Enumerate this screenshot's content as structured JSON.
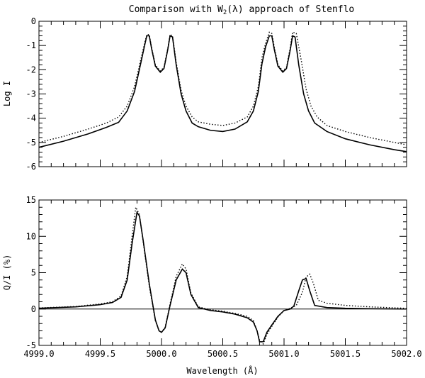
{
  "chart_data": [
    {
      "type": "line",
      "title": "Comparison with W2(λ) approach of Stenflo",
      "xlabel": "",
      "ylabel": "Log I",
      "xlim": [
        4999.0,
        5002.0
      ],
      "ylim": [
        -6,
        0
      ],
      "x_ticks": [
        4999.0,
        4999.5,
        5000.0,
        5000.5,
        5001.0,
        5001.5,
        5002.0
      ],
      "y_ticks": [
        0,
        -1,
        -2,
        -3,
        -4,
        -5,
        -6
      ],
      "y_tick_labels": [
        "0",
        "-1",
        "-2",
        "-3",
        "-4",
        "-5",
        "-6"
      ],
      "series": [
        {
          "name": "solid",
          "style": "solid",
          "x": [
            4999.0,
            4999.2,
            4999.4,
            4999.55,
            4999.65,
            4999.72,
            4999.78,
            4999.83,
            4999.86,
            4999.88,
            4999.9,
            4999.92,
            4999.95,
            4999.99,
            5000.02,
            5000.05,
            5000.07,
            5000.09,
            5000.12,
            5000.16,
            5000.2,
            5000.25,
            5000.3,
            5000.4,
            5000.5,
            5000.6,
            5000.7,
            5000.75,
            5000.79,
            5000.82,
            5000.85,
            5000.88,
            5000.9,
            5000.92,
            5000.95,
            5000.99,
            5001.02,
            5001.05,
            5001.07,
            5001.09,
            5001.12,
            5001.16,
            5001.2,
            5001.25,
            5001.35,
            5001.5,
            5001.7,
            5001.9,
            5002.0
          ],
          "y": [
            -5.2,
            -4.95,
            -4.65,
            -4.38,
            -4.17,
            -3.7,
            -2.9,
            -1.75,
            -1.05,
            -0.6,
            -0.6,
            -1.15,
            -1.85,
            -2.1,
            -1.95,
            -1.2,
            -0.6,
            -0.65,
            -1.8,
            -3.0,
            -3.7,
            -4.2,
            -4.35,
            -4.5,
            -4.55,
            -4.45,
            -4.15,
            -3.7,
            -2.9,
            -1.75,
            -1.05,
            -0.6,
            -0.6,
            -1.15,
            -1.85,
            -2.1,
            -1.95,
            -1.2,
            -0.6,
            -0.65,
            -1.8,
            -3.0,
            -3.7,
            -4.2,
            -4.55,
            -4.85,
            -5.1,
            -5.3,
            -5.38
          ]
        },
        {
          "name": "dotted",
          "style": "dotted",
          "x": [
            4999.0,
            4999.2,
            4999.4,
            4999.55,
            4999.65,
            4999.72,
            4999.78,
            4999.83,
            4999.86,
            4999.88,
            4999.9,
            4999.92,
            4999.95,
            4999.99,
            5000.02,
            5000.05,
            5000.07,
            5000.09,
            5000.12,
            5000.16,
            5000.2,
            5000.25,
            5000.3,
            5000.4,
            5000.5,
            5000.6,
            5000.7,
            5000.75,
            5000.79,
            5000.82,
            5000.85,
            5000.88,
            5000.9,
            5000.92,
            5000.95,
            5000.99,
            5001.02,
            5001.05,
            5001.07,
            5001.1,
            5001.14,
            5001.18,
            5001.22,
            5001.27,
            5001.35,
            5001.5,
            5001.7,
            5001.9,
            5002.0
          ],
          "y": [
            -5.0,
            -4.75,
            -4.45,
            -4.2,
            -3.95,
            -3.5,
            -2.7,
            -1.6,
            -0.95,
            -0.55,
            -0.55,
            -1.1,
            -1.8,
            -2.05,
            -1.9,
            -1.15,
            -0.55,
            -0.6,
            -1.7,
            -2.85,
            -3.5,
            -3.95,
            -4.15,
            -4.25,
            -4.3,
            -4.2,
            -3.95,
            -3.5,
            -2.7,
            -1.5,
            -0.9,
            -0.45,
            -0.5,
            -1.05,
            -1.8,
            -2.05,
            -1.9,
            -1.1,
            -0.45,
            -0.5,
            -1.6,
            -2.8,
            -3.5,
            -3.95,
            -4.3,
            -4.55,
            -4.8,
            -5.0,
            -5.1
          ]
        }
      ]
    },
    {
      "type": "line",
      "title": "",
      "xlabel": "Wavelength (Å)",
      "ylabel": "Q/I (%)",
      "xlim": [
        4999.0,
        5002.0
      ],
      "ylim": [
        -5,
        15
      ],
      "x_ticks": [
        4999.0,
        4999.5,
        5000.0,
        5000.5,
        5001.0,
        5001.5,
        5002.0
      ],
      "x_tick_labels": [
        "4999.0",
        "4999.5",
        "5000.0",
        "5000.5",
        "5001.0",
        "5001.5",
        "5002.0"
      ],
      "y_ticks": [
        15,
        10,
        5,
        0,
        -5
      ],
      "y_tick_labels": [
        "15",
        "10",
        "5",
        "0",
        "-5"
      ],
      "zero_line": 0,
      "series": [
        {
          "name": "solid",
          "style": "solid",
          "x": [
            4999.0,
            4999.3,
            4999.5,
            4999.6,
            4999.67,
            4999.72,
            4999.76,
            4999.8,
            4999.82,
            4999.85,
            4999.9,
            4999.95,
            4999.98,
            5000.0,
            5000.03,
            5000.07,
            5000.12,
            5000.17,
            5000.2,
            5000.24,
            5000.3,
            5000.4,
            5000.5,
            5000.6,
            5000.7,
            5000.75,
            5000.78,
            5000.8,
            5000.83,
            5000.86,
            5000.9,
            5000.95,
            5001.0,
            5001.05,
            5001.08,
            5001.12,
            5001.15,
            5001.18,
            5001.21,
            5001.25,
            5001.35,
            5001.5,
            5001.7,
            5002.0
          ],
          "y": [
            0.1,
            0.3,
            0.6,
            0.9,
            1.6,
            4.0,
            9.0,
            13.3,
            12.8,
            9.5,
            3.5,
            -1.5,
            -3.0,
            -3.2,
            -2.6,
            0.5,
            4.0,
            5.5,
            5.0,
            2.0,
            0.2,
            -0.2,
            -0.4,
            -0.7,
            -1.2,
            -1.8,
            -3.0,
            -4.5,
            -4.5,
            -3.2,
            -2.2,
            -1.0,
            -0.2,
            0.0,
            0.4,
            2.5,
            4.0,
            4.2,
            2.5,
            0.5,
            0.2,
            0.1,
            0.05,
            0.0
          ]
        },
        {
          "name": "dotted",
          "style": "dotted",
          "x": [
            4999.0,
            4999.3,
            4999.5,
            4999.6,
            4999.67,
            4999.72,
            4999.76,
            4999.79,
            4999.82,
            4999.85,
            4999.9,
            4999.95,
            4999.98,
            5000.0,
            5000.03,
            5000.07,
            5000.12,
            5000.17,
            5000.2,
            5000.24,
            5000.3,
            5000.4,
            5000.5,
            5000.6,
            5000.7,
            5000.75,
            5000.78,
            5000.8,
            5000.83,
            5000.86,
            5000.9,
            5000.95,
            5001.0,
            5001.05,
            5001.1,
            5001.15,
            5001.18,
            5001.21,
            5001.24,
            5001.28,
            5001.35,
            5001.5,
            5001.7,
            5002.0
          ],
          "y": [
            0.15,
            0.35,
            0.7,
            1.0,
            1.8,
            4.5,
            10.0,
            14.0,
            13.0,
            9.3,
            3.2,
            -1.6,
            -3.0,
            -3.2,
            -2.5,
            0.7,
            4.5,
            6.2,
            5.5,
            2.2,
            0.3,
            -0.1,
            -0.3,
            -0.6,
            -1.0,
            -1.6,
            -3.0,
            -4.3,
            -4.8,
            -3.5,
            -2.4,
            -1.1,
            -0.2,
            0.1,
            0.5,
            2.3,
            4.4,
            4.8,
            3.5,
            1.2,
            0.8,
            0.5,
            0.3,
            0.1
          ]
        }
      ]
    }
  ]
}
